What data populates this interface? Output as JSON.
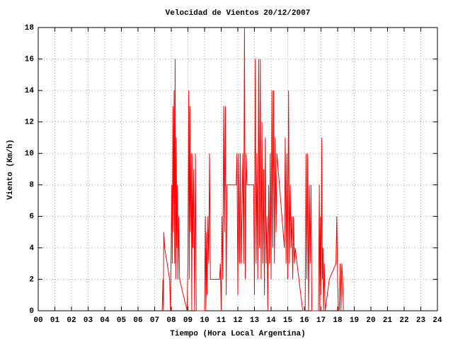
{
  "chart_data": {
    "type": "line",
    "title": "Velocidad de Vientos 20/12/2007",
    "x_label": "Tiempo (Hora Local Argentina)",
    "y_label": "Viento (Km/h)",
    "color": "#ff0000",
    "grid": true,
    "xlim": [
      0,
      24
    ],
    "ylim": [
      0,
      18
    ],
    "xticks": [
      {
        "value": 0,
        "label": "00"
      },
      {
        "value": 1,
        "label": "01"
      },
      {
        "value": 2,
        "label": "02"
      },
      {
        "value": 3,
        "label": "03"
      },
      {
        "value": 4,
        "label": "04"
      },
      {
        "value": 5,
        "label": "05"
      },
      {
        "value": 6,
        "label": "06"
      },
      {
        "value": 7,
        "label": "07"
      },
      {
        "value": 8,
        "label": "08"
      },
      {
        "value": 9,
        "label": "09"
      },
      10,
      11,
      12,
      13,
      14,
      15,
      16,
      17,
      18,
      19,
      20,
      21,
      22,
      23,
      24
    ],
    "yticks": [
      0,
      2,
      4,
      6,
      8,
      10,
      12,
      14,
      16,
      18
    ],
    "x": [
      7.45,
      7.5,
      7.52,
      7.55,
      7.6,
      7.9,
      7.95,
      8.0,
      8.03,
      8.06,
      8.1,
      8.13,
      8.17,
      8.2,
      8.23,
      8.27,
      8.3,
      8.33,
      8.37,
      8.4,
      8.45,
      8.5,
      8.95,
      9.0,
      9.05,
      9.08,
      9.12,
      9.15,
      9.2,
      9.23,
      9.27,
      9.3,
      9.35,
      9.4,
      9.45,
      9.5,
      10.0,
      10.05,
      10.08,
      10.12,
      10.15,
      10.2,
      10.25,
      10.3,
      10.35,
      10.9,
      10.95,
      11.0,
      11.05,
      11.1,
      11.15,
      11.2,
      11.25,
      11.3,
      11.35,
      11.4,
      11.9,
      11.95,
      12.0,
      12.05,
      12.1,
      12.15,
      12.2,
      12.3,
      12.35,
      12.4,
      12.45,
      12.5,
      12.55,
      12.95,
      13.0,
      13.05,
      13.1,
      13.15,
      13.2,
      13.25,
      13.3,
      13.35,
      13.4,
      13.45,
      13.5,
      13.55,
      13.6,
      13.65,
      13.7,
      13.75,
      13.8,
      13.85,
      13.9,
      13.95,
      14.0,
      14.05,
      14.1,
      14.15,
      14.2,
      14.25,
      14.3,
      14.35,
      14.8,
      14.85,
      14.9,
      14.95,
      15.0,
      15.05,
      15.1,
      15.15,
      15.2,
      15.25,
      15.3,
      15.35,
      15.4,
      15.45,
      15.9,
      16.05,
      16.1,
      16.15,
      16.2,
      16.25,
      16.3,
      16.35,
      16.4,
      16.45,
      16.85,
      16.9,
      16.93,
      16.97,
      17.0,
      17.05,
      17.08,
      17.12,
      17.15,
      17.2,
      17.25,
      17.5,
      17.9,
      17.95,
      18.0,
      18.05,
      18.1,
      18.15,
      18.2,
      18.25,
      18.3,
      18.35
    ],
    "values": [
      0,
      2,
      0,
      5,
      4,
      2,
      0,
      5,
      8,
      3,
      13,
      5,
      14,
      3,
      16,
      2,
      11,
      4,
      8,
      2,
      6,
      2,
      0,
      3,
      14,
      2,
      13,
      5,
      10,
      0,
      10,
      4,
      9,
      0,
      10,
      0,
      0,
      6,
      0,
      5,
      1,
      6,
      3,
      10,
      2,
      2,
      3,
      0,
      6,
      2,
      13,
      5,
      13,
      1,
      8,
      8,
      8,
      10,
      1,
      10,
      3,
      10,
      3,
      10,
      3,
      18,
      2,
      10,
      8,
      8,
      1,
      16,
      3,
      10,
      2,
      16,
      4,
      16,
      2,
      12,
      3,
      9,
      1,
      11,
      3,
      6,
      0,
      8,
      3,
      10,
      2,
      14,
      4,
      14,
      3,
      11,
      5,
      10,
      4,
      11,
      3,
      10,
      2,
      14,
      3,
      8,
      4,
      6,
      2,
      6,
      3,
      4,
      0,
      0,
      10,
      2,
      10,
      0,
      8,
      3,
      8,
      0,
      0,
      8,
      0,
      6,
      1,
      11,
      2,
      4,
      0,
      3,
      0,
      2,
      3,
      6,
      2,
      0,
      0,
      3,
      0,
      3,
      2,
      0
    ]
  }
}
